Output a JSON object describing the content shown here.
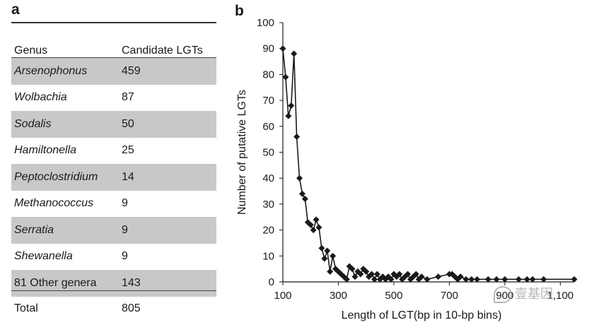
{
  "panel_a": {
    "letter": "a",
    "header": {
      "col1": "Genus",
      "col2": "Candidate LGTs"
    },
    "rows": [
      {
        "genus": "Arsenophonus",
        "count": "459",
        "shaded": true,
        "italic": true
      },
      {
        "genus": "Wolbachia",
        "count": "87",
        "shaded": false,
        "italic": true
      },
      {
        "genus": "Sodalis",
        "count": "50",
        "shaded": true,
        "italic": true
      },
      {
        "genus": "Hamiltonella",
        "count": "25",
        "shaded": false,
        "italic": true
      },
      {
        "genus": "Peptoclostridium",
        "count": "14",
        "shaded": true,
        "italic": true
      },
      {
        "genus": "Methanococcus",
        "count": "9",
        "shaded": false,
        "italic": true
      },
      {
        "genus": "Serratia",
        "count": "9",
        "shaded": true,
        "italic": true
      },
      {
        "genus": "Shewanella",
        "count": "9",
        "shaded": false,
        "italic": true
      },
      {
        "genus": "81 Other genera",
        "count": "143",
        "shaded": true,
        "italic": false
      }
    ],
    "total": {
      "label": "Total",
      "value": "805"
    }
  },
  "panel_b": {
    "letter": "b"
  },
  "watermark": {
    "text": "壹基因"
  },
  "chart_data": {
    "type": "line",
    "title": "",
    "xlabel": "Length of LGT(bp in 10-bp bins)",
    "ylabel": "Number of putative LGTs",
    "xlim": [
      100,
      1150
    ],
    "ylim": [
      0,
      100
    ],
    "xticks": [
      100,
      300,
      500,
      700,
      900,
      1100
    ],
    "xtick_labels": [
      "100",
      "300",
      "500",
      "700",
      "900",
      "1,100"
    ],
    "yticks": [
      0,
      10,
      20,
      30,
      40,
      50,
      60,
      70,
      80,
      90,
      100
    ],
    "grid": false,
    "series": [
      {
        "name": "Putative LGTs",
        "marker": "diamond",
        "x": [
          100,
          110,
          120,
          130,
          140,
          150,
          160,
          170,
          180,
          190,
          200,
          210,
          220,
          230,
          240,
          250,
          260,
          270,
          280,
          290,
          300,
          310,
          320,
          330,
          340,
          350,
          360,
          370,
          380,
          390,
          400,
          410,
          420,
          430,
          440,
          450,
          460,
          470,
          480,
          490,
          500,
          510,
          520,
          530,
          540,
          550,
          560,
          570,
          580,
          590,
          600,
          620,
          660,
          700,
          710,
          720,
          730,
          740,
          760,
          780,
          800,
          840,
          870,
          900,
          950,
          980,
          1000,
          1040,
          1150
        ],
        "y": [
          90,
          79,
          64,
          68,
          88,
          56,
          40,
          34,
          32,
          23,
          22,
          20,
          24,
          21,
          13,
          9,
          12,
          4,
          10,
          5,
          4,
          3,
          2,
          1,
          6,
          5,
          2,
          4,
          3,
          5,
          4,
          2,
          3,
          1,
          3,
          1,
          2,
          1,
          2,
          1,
          3,
          2,
          3,
          1,
          2,
          3,
          1,
          2,
          3,
          1,
          2,
          1,
          2,
          3,
          3,
          2,
          1,
          2,
          1,
          1,
          1,
          1,
          1,
          1,
          1,
          1,
          1,
          1,
          1
        ]
      }
    ]
  }
}
